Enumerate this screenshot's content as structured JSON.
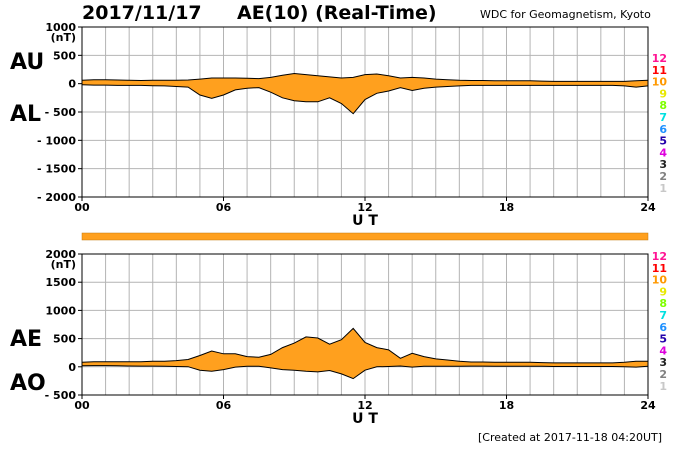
{
  "header": {
    "date": "2017/11/17",
    "title": "AE(10) (Real-Time)",
    "organisation": "WDC for Geomagnetism, Kyoto"
  },
  "footer": {
    "created": "[Created at 2017-11-18 04:20UT]"
  },
  "colors": {
    "fill": "#ffa01e",
    "line": "#000000",
    "grid": "#b4b4b4"
  },
  "station_count_labels": [
    {
      "text": "12",
      "color": "#ff1493"
    },
    {
      "text": "11",
      "color": "#ff0000"
    },
    {
      "text": "10",
      "color": "#ff9900"
    },
    {
      "text": "9",
      "color": "#e8e800"
    },
    {
      "text": "8",
      "color": "#7fff00"
    },
    {
      "text": "7",
      "color": "#00e0e0"
    },
    {
      "text": "6",
      "color": "#1e90ff"
    },
    {
      "text": "5",
      "color": "#2200aa"
    },
    {
      "text": "4",
      "color": "#dd00dd"
    },
    {
      "text": "3",
      "color": "#222222"
    },
    {
      "text": "2",
      "color": "#808080"
    },
    {
      "text": "1",
      "color": "#c8c8c8"
    }
  ],
  "chart_data": [
    {
      "type": "area",
      "series": [
        {
          "name": "AU",
          "x": [
            0,
            0.5,
            1,
            1.5,
            2,
            2.5,
            3,
            3.5,
            4,
            4.5,
            5,
            5.5,
            6,
            6.5,
            7,
            7.5,
            8,
            8.5,
            9,
            9.5,
            10,
            10.5,
            11,
            11.5,
            12,
            12.5,
            13,
            13.5,
            14,
            14.5,
            15,
            15.5,
            16,
            16.5,
            17,
            17.5,
            18,
            18.5,
            19,
            19.5,
            20,
            20.5,
            21,
            21.5,
            22,
            22.5,
            23,
            23.5,
            24
          ],
          "values": [
            60,
            70,
            70,
            65,
            60,
            55,
            60,
            60,
            60,
            65,
            80,
            100,
            100,
            100,
            95,
            90,
            110,
            150,
            180,
            160,
            140,
            120,
            100,
            110,
            160,
            170,
            140,
            100,
            110,
            100,
            80,
            70,
            60,
            55,
            55,
            50,
            50,
            50,
            50,
            45,
            40,
            40,
            40,
            40,
            40,
            40,
            40,
            50,
            60
          ]
        },
        {
          "name": "AL",
          "x": [
            0,
            0.5,
            1,
            1.5,
            2,
            2.5,
            3,
            3.5,
            4,
            4.5,
            5,
            5.5,
            6,
            6.5,
            7,
            7.5,
            8,
            8.5,
            9,
            9.5,
            10,
            10.5,
            11,
            11.5,
            12,
            12.5,
            13,
            13.5,
            14,
            14.5,
            15,
            15.5,
            16,
            16.5,
            17,
            17.5,
            18,
            18.5,
            19,
            19.5,
            20,
            20.5,
            21,
            21.5,
            22,
            22.5,
            23,
            23.5,
            24
          ],
          "values": [
            -20,
            -25,
            -25,
            -30,
            -30,
            -30,
            -35,
            -40,
            -50,
            -60,
            -200,
            -260,
            -200,
            -110,
            -80,
            -70,
            -150,
            -250,
            -300,
            -320,
            -320,
            -250,
            -350,
            -530,
            -280,
            -170,
            -130,
            -70,
            -120,
            -80,
            -60,
            -50,
            -40,
            -30,
            -30,
            -30,
            -30,
            -30,
            -30,
            -30,
            -30,
            -30,
            -30,
            -30,
            -30,
            -30,
            -40,
            -60,
            -40
          ]
        }
      ],
      "ylabel": "(nT)",
      "ylim": [
        -2000,
        1000
      ],
      "y_ticks": [
        "1000",
        "500",
        "0",
        "- 500",
        "- 1000",
        "- 1500",
        "- 2000"
      ],
      "x_ticks": [
        "00",
        "06",
        "12",
        "18",
        "24"
      ],
      "xlabel": "U T",
      "series_labels": [
        "AU",
        "AL"
      ],
      "grid": true
    },
    {
      "type": "area",
      "series": [
        {
          "name": "AE",
          "x": [
            0,
            0.5,
            1,
            1.5,
            2,
            2.5,
            3,
            3.5,
            4,
            4.5,
            5,
            5.5,
            6,
            6.5,
            7,
            7.5,
            8,
            8.5,
            9,
            9.5,
            10,
            10.5,
            11,
            11.5,
            12,
            12.5,
            13,
            13.5,
            14,
            14.5,
            15,
            15.5,
            16,
            16.5,
            17,
            17.5,
            18,
            18.5,
            19,
            19.5,
            20,
            20.5,
            21,
            21.5,
            22,
            22.5,
            23,
            23.5,
            24
          ],
          "values": [
            80,
            90,
            90,
            90,
            90,
            90,
            100,
            100,
            110,
            130,
            200,
            280,
            230,
            230,
            180,
            170,
            220,
            340,
            420,
            530,
            510,
            400,
            480,
            680,
            430,
            340,
            300,
            150,
            240,
            180,
            140,
            120,
            100,
            85,
            85,
            80,
            80,
            80,
            80,
            75,
            70,
            70,
            70,
            70,
            70,
            70,
            80,
            100,
            100
          ]
        },
        {
          "name": "AO",
          "x": [
            0,
            0.5,
            1,
            1.5,
            2,
            2.5,
            3,
            3.5,
            4,
            4.5,
            5,
            5.5,
            6,
            6.5,
            7,
            7.5,
            8,
            8.5,
            9,
            9.5,
            10,
            10.5,
            11,
            11.5,
            12,
            12.5,
            13,
            13.5,
            14,
            14.5,
            15,
            15.5,
            16,
            16.5,
            17,
            17.5,
            18,
            18.5,
            19,
            19.5,
            20,
            20.5,
            21,
            21.5,
            22,
            22.5,
            23,
            23.5,
            24
          ],
          "values": [
            20,
            22,
            22,
            18,
            15,
            12,
            12,
            10,
            5,
            2,
            -60,
            -80,
            -50,
            -5,
            8,
            10,
            -20,
            -50,
            -60,
            -80,
            -90,
            -65,
            -125,
            -210,
            -60,
            0,
            5,
            15,
            -5,
            10,
            10,
            10,
            10,
            12,
            12,
            10,
            10,
            10,
            10,
            8,
            5,
            5,
            5,
            5,
            5,
            5,
            0,
            -5,
            10
          ]
        }
      ],
      "ylabel": "(nT)",
      "ylim": [
        -500,
        2000
      ],
      "y_ticks": [
        "2000",
        "1500",
        "1000",
        "500",
        "0",
        "- 500"
      ],
      "x_ticks": [
        "00",
        "06",
        "12",
        "18",
        "24"
      ],
      "xlabel": "U T",
      "series_labels": [
        "AE",
        "AO"
      ],
      "grid": true
    }
  ]
}
